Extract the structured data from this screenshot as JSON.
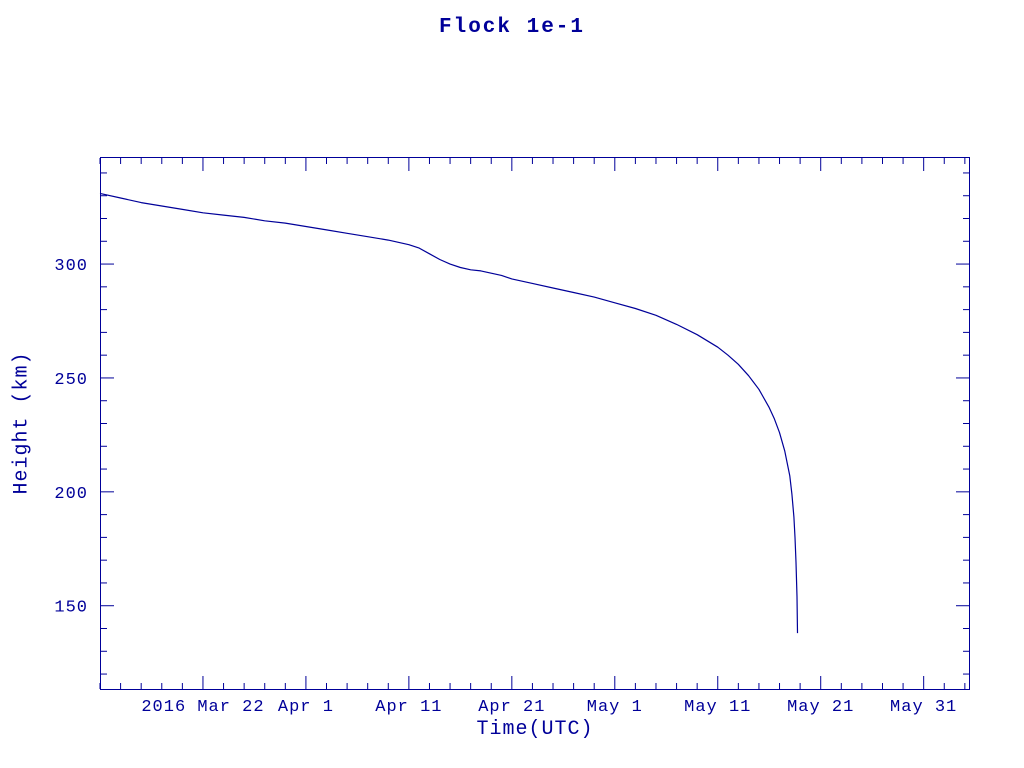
{
  "page": {
    "background": "#ffffff"
  },
  "chart_data": {
    "type": "line",
    "title": "Flock 1e-1",
    "xlabel": "Time(UTC)",
    "ylabel": "Height (km)",
    "color": "#000099",
    "x_epoch": "days since 2016 Mar 12",
    "x_domain_days": [
      0,
      84.5
    ],
    "ylim": [
      113,
      347
    ],
    "x_ticks": [
      {
        "day": 10,
        "label": "2016 Mar 22"
      },
      {
        "day": 20,
        "label": "Apr  1"
      },
      {
        "day": 30,
        "label": "Apr 11"
      },
      {
        "day": 40,
        "label": "Apr 21"
      },
      {
        "day": 50,
        "label": "May  1"
      },
      {
        "day": 60,
        "label": "May 11"
      },
      {
        "day": 70,
        "label": "May 21"
      },
      {
        "day": 80,
        "label": "May 31"
      }
    ],
    "x_minor_step": 2,
    "y_ticks": [
      150,
      200,
      250,
      300
    ],
    "y_minor_step": 10,
    "grid": false,
    "legend": "none",
    "series": [
      {
        "name": "Flock 1e-1 height",
        "color": "#000099",
        "points": [
          [
            0,
            331
          ],
          [
            2,
            329
          ],
          [
            4,
            327
          ],
          [
            6,
            325.5
          ],
          [
            8,
            324
          ],
          [
            10,
            322.5
          ],
          [
            12,
            321.5
          ],
          [
            14,
            320.5
          ],
          [
            16,
            319
          ],
          [
            18,
            318
          ],
          [
            20,
            316.5
          ],
          [
            22,
            315
          ],
          [
            24,
            313.5
          ],
          [
            26,
            312
          ],
          [
            28,
            310.5
          ],
          [
            30,
            308.5
          ],
          [
            31,
            307
          ],
          [
            32,
            304.5
          ],
          [
            33,
            302
          ],
          [
            34,
            300
          ],
          [
            35,
            298.5
          ],
          [
            36,
            297.5
          ],
          [
            37,
            297
          ],
          [
            38,
            296
          ],
          [
            39,
            295
          ],
          [
            40,
            293.5
          ],
          [
            42,
            291.5
          ],
          [
            44,
            289.5
          ],
          [
            46,
            287.5
          ],
          [
            48,
            285.5
          ],
          [
            50,
            283
          ],
          [
            52,
            280.5
          ],
          [
            54,
            277.5
          ],
          [
            56,
            273.5
          ],
          [
            58,
            269
          ],
          [
            60,
            263.5
          ],
          [
            61,
            260
          ],
          [
            62,
            256
          ],
          [
            63,
            251
          ],
          [
            64,
            245
          ],
          [
            65,
            237
          ],
          [
            65.5,
            232
          ],
          [
            66,
            226
          ],
          [
            66.5,
            218
          ],
          [
            67,
            207
          ],
          [
            67.2,
            199
          ],
          [
            67.4,
            189
          ],
          [
            67.5,
            180
          ],
          [
            67.6,
            169
          ],
          [
            67.7,
            154
          ],
          [
            67.75,
            138
          ]
        ]
      }
    ]
  }
}
